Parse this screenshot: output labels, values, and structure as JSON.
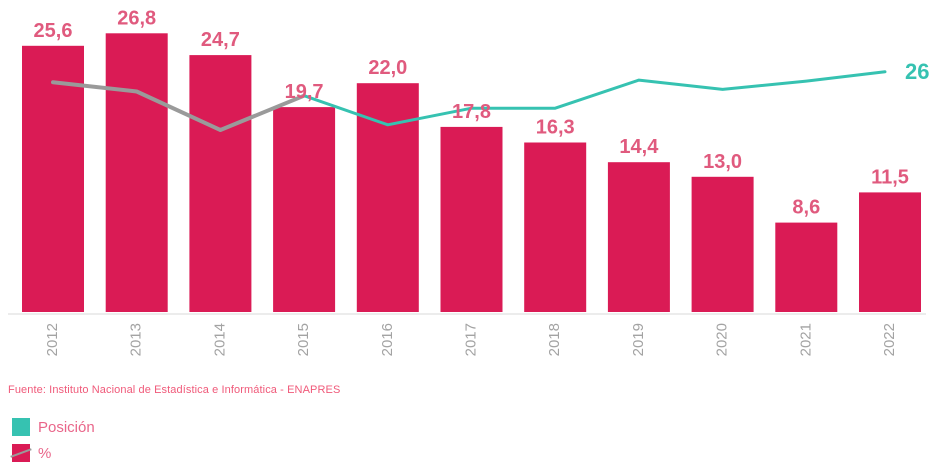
{
  "colors": {
    "bar": "#da1b55",
    "line_teal": "#36c2b1",
    "line_gray": "#9a9a9a",
    "label": "#e05a7e",
    "tick": "#a3a3a3",
    "axis": "#d9d9d9"
  },
  "source_note": "Fuente: Instituto Nacional de Estadística e Informática - ENAPRES",
  "legend": [
    {
      "label": "Posición",
      "color": "#36c2b1",
      "icon": "teal-square"
    },
    {
      "label": "%",
      "color": "#da1b55",
      "icon": "bar-and-line-swatch"
    }
  ],
  "chart_data": {
    "type": "bar",
    "title": "",
    "xlabel": "",
    "ylabel": "",
    "ylim": [
      0,
      30
    ],
    "grid": false,
    "legend_position": "bottom-left",
    "categories": [
      "2012",
      "2013",
      "2014",
      "2015",
      "2016",
      "2017",
      "2018",
      "2019",
      "2020",
      "2021",
      "2022"
    ],
    "series": [
      {
        "name": "%",
        "type": "bar",
        "values": [
          25.6,
          26.8,
          24.7,
          19.7,
          22.0,
          17.8,
          16.3,
          14.4,
          13.0,
          8.6,
          11.5
        ],
        "labels": [
          "25,6",
          "26,8",
          "24,7",
          "19,7",
          "22,0",
          "17,8",
          "16,3",
          "14,4",
          "13,0",
          "8,6",
          "11,5"
        ]
      },
      {
        "name": "Posición",
        "type": "line",
        "values": [
          22.1,
          21.2,
          17.5,
          20.8,
          18.0,
          19.6,
          19.6,
          22.3,
          21.4,
          22.2,
          23.0
        ],
        "end_label": "26"
      }
    ]
  }
}
